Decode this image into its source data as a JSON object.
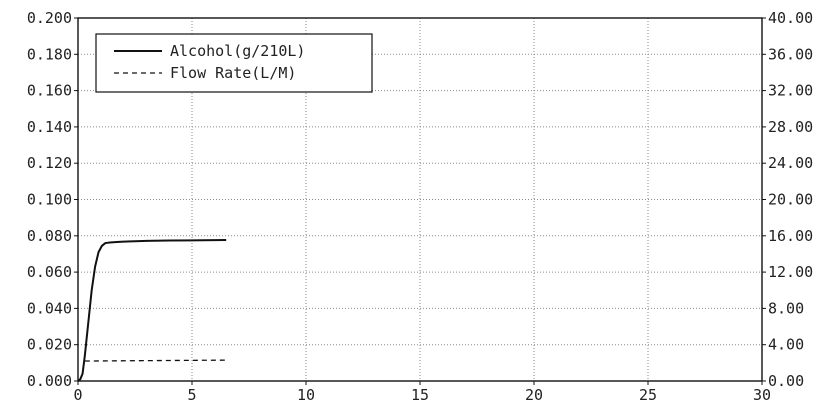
{
  "chart_data": {
    "type": "line",
    "title": "",
    "xlabel": "",
    "ylabel": "",
    "y2label": "",
    "grid": true,
    "legend_position": "top-left",
    "xlim": [
      0,
      30
    ],
    "ylim": [
      0,
      0.2
    ],
    "y2lim": [
      0,
      40
    ],
    "x_ticks": [
      "0",
      "5",
      "10",
      "15",
      "20",
      "25",
      "30"
    ],
    "y_ticks": [
      "0.000",
      "0.020",
      "0.040",
      "0.060",
      "0.080",
      "0.100",
      "0.120",
      "0.140",
      "0.160",
      "0.180",
      "0.200"
    ],
    "y2_ticks": [
      "0.00",
      "4.00",
      "8.00",
      "12.00",
      "16.00",
      "20.00",
      "24.00",
      "28.00",
      "32.00",
      "36.00",
      "40.00"
    ],
    "series": [
      {
        "name": "Alcohol(g/210L)",
        "axis": "left",
        "style": "solid",
        "color": "#111111",
        "x": [
          0,
          0.1,
          0.2,
          0.3,
          0.45,
          0.6,
          0.75,
          0.9,
          1.05,
          1.2,
          1.4,
          1.7,
          2.0,
          2.5,
          3.0,
          4.0,
          5.0,
          6.0,
          6.5
        ],
        "y": [
          0,
          0.001,
          0.004,
          0.014,
          0.032,
          0.05,
          0.063,
          0.071,
          0.0745,
          0.076,
          0.0763,
          0.0766,
          0.0768,
          0.077,
          0.0772,
          0.0774,
          0.0775,
          0.0776,
          0.0777
        ]
      },
      {
        "name": "Flow Rate(L/M)",
        "axis": "right",
        "style": "dashed",
        "color": "#111111",
        "x": [
          0.3,
          6.5
        ],
        "y": [
          2.2,
          2.3
        ]
      }
    ]
  }
}
